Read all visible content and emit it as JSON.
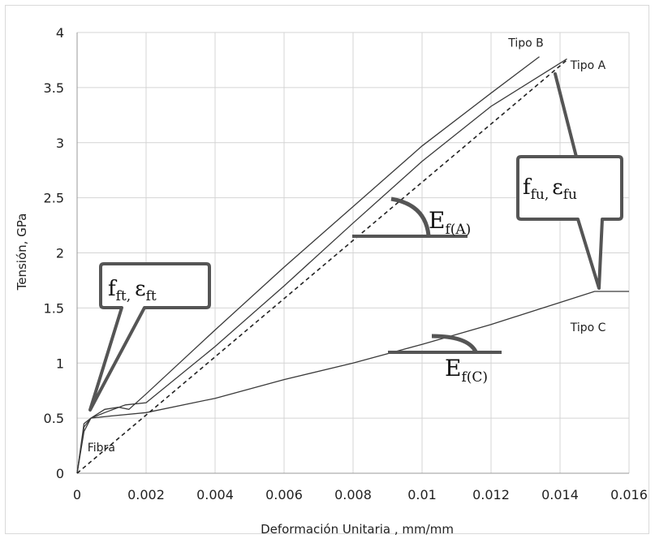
{
  "chart_data": {
    "type": "line",
    "xlabel": "Deformación Unitaria , mm/mm",
    "ylabel": "Tensión, GPa",
    "xlim": [
      0,
      0.016
    ],
    "ylim": [
      0,
      4
    ],
    "x_ticks": [
      "0",
      "0.002",
      "0.004",
      "0.006",
      "0.008",
      "0.01",
      "0.012",
      "0.014",
      "0.016"
    ],
    "y_ticks": [
      "0",
      "0.5",
      "1",
      "1.5",
      "2",
      "2.5",
      "3",
      "3.5",
      "4"
    ],
    "grid": true,
    "series": [
      {
        "name": "Tipo B",
        "color": "#3a3a3a",
        "style": "solid",
        "points": [
          [
            0,
            0
          ],
          [
            0.0002,
            0.42
          ],
          [
            0.0004,
            0.5
          ],
          [
            0.0008,
            0.58
          ],
          [
            0.0012,
            0.6
          ],
          [
            0.0015,
            0.58
          ],
          [
            0.002,
            0.72
          ],
          [
            0.004,
            1.3
          ],
          [
            0.006,
            1.87
          ],
          [
            0.008,
            2.42
          ],
          [
            0.01,
            2.97
          ],
          [
            0.012,
            3.45
          ],
          [
            0.0134,
            3.78
          ]
        ]
      },
      {
        "name": "Tipo A",
        "color": "#3a3a3a",
        "style": "solid",
        "points": [
          [
            0,
            0
          ],
          [
            0.0002,
            0.38
          ],
          [
            0.0004,
            0.5
          ],
          [
            0.0008,
            0.55
          ],
          [
            0.0014,
            0.62
          ],
          [
            0.002,
            0.64
          ],
          [
            0.004,
            1.15
          ],
          [
            0.006,
            1.7
          ],
          [
            0.008,
            2.27
          ],
          [
            0.01,
            2.83
          ],
          [
            0.012,
            3.33
          ],
          [
            0.0142,
            3.76
          ]
        ]
      },
      {
        "name": "Tipo C",
        "color": "#3a3a3a",
        "style": "solid",
        "points": [
          [
            0,
            0
          ],
          [
            0.0002,
            0.45
          ],
          [
            0.0004,
            0.5
          ],
          [
            0.001,
            0.52
          ],
          [
            0.002,
            0.55
          ],
          [
            0.004,
            0.68
          ],
          [
            0.006,
            0.85
          ],
          [
            0.008,
            1.0
          ],
          [
            0.01,
            1.17
          ],
          [
            0.012,
            1.35
          ],
          [
            0.014,
            1.55
          ],
          [
            0.015,
            1.65
          ],
          [
            0.016,
            1.65
          ]
        ]
      },
      {
        "name": "Fibra",
        "color": "#222222",
        "style": "dashed",
        "points": [
          [
            0,
            0
          ],
          [
            0.0142,
            3.75
          ]
        ]
      }
    ],
    "annotations": {
      "fft": {
        "main": "f",
        "sub1": "ft,",
        "eps": "ε",
        "sub2": "ft"
      },
      "ffu": {
        "main": "f",
        "sub1": "fu,",
        "eps": "ε",
        "sub2": "fu"
      },
      "ef_a": {
        "main": "E",
        "sub": "f(A)"
      },
      "ef_c": {
        "main": "E",
        "sub": "f(C)"
      }
    }
  }
}
